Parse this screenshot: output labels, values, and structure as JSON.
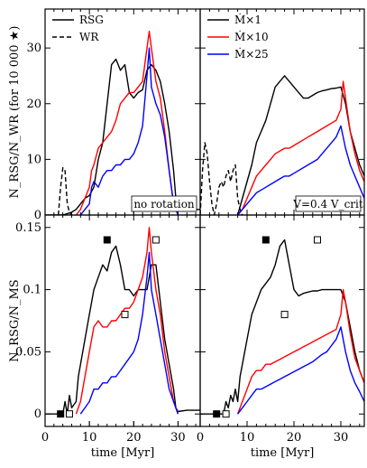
{
  "chart_data": [
    {
      "type": "line",
      "panel": "top-left",
      "xlim": [
        0,
        35
      ],
      "ylim": [
        0,
        37
      ],
      "ylabel": "N_RSG/N_WR (for 10 000 ★)",
      "yticks": [
        "0",
        "10",
        "20",
        "30"
      ],
      "note": "no rotation",
      "legend": {
        "placement": "top-left",
        "entries": [
          {
            "label": "RSG",
            "style": "solid",
            "color": "#000000"
          },
          {
            "label": "WR",
            "style": "dashed",
            "color": "#000000"
          }
        ]
      },
      "series": [
        {
          "color": "#000000",
          "style": "solid",
          "x": [
            0,
            3,
            4,
            6,
            7,
            8,
            9,
            10,
            11,
            12,
            13,
            14,
            15,
            16,
            17,
            18,
            19,
            20,
            21,
            22,
            23,
            24,
            25,
            26,
            27,
            28,
            29,
            29.5,
            30,
            32,
            35
          ],
          "y": [
            0,
            0,
            0,
            0.5,
            1,
            2,
            3,
            3.5,
            5,
            10,
            13,
            20,
            27,
            28,
            26,
            27,
            22,
            21,
            22,
            22.5,
            26,
            27,
            26,
            24,
            20,
            15,
            8,
            3,
            1,
            1,
            1
          ]
        },
        {
          "color": "#000000",
          "style": "dashed",
          "x": [
            3,
            3.5,
            4,
            4.5,
            5,
            5.5,
            6
          ],
          "y": [
            0,
            5,
            8.5,
            8,
            2,
            0.5,
            0
          ]
        },
        {
          "color": "#ff0000",
          "style": "solid",
          "x": [
            7,
            8,
            9,
            10,
            10.5,
            11,
            12,
            13,
            14,
            15,
            16,
            17,
            18,
            19,
            20,
            21,
            22,
            23,
            23.5,
            24,
            25,
            26,
            27,
            28,
            29,
            30
          ],
          "y": [
            0,
            1,
            3,
            5,
            8,
            9,
            12,
            13,
            14,
            15,
            17,
            20,
            21,
            22,
            22,
            23,
            24,
            30,
            33,
            30,
            24,
            21,
            15,
            8,
            2,
            0
          ]
        },
        {
          "color": "#0000ff",
          "style": "solid",
          "x": [
            8,
            9,
            10,
            10.5,
            11,
            12,
            13,
            14,
            15,
            16,
            17,
            18,
            19,
            20,
            21,
            22,
            23,
            23.5,
            24,
            25,
            26,
            27,
            28,
            29,
            30
          ],
          "y": [
            0,
            1,
            2,
            5,
            6,
            5,
            7,
            8,
            8,
            9,
            9,
            10,
            10,
            11,
            13,
            16,
            25,
            30,
            23,
            20,
            18,
            14,
            8,
            2,
            0
          ]
        }
      ]
    },
    {
      "type": "line",
      "panel": "top-right",
      "xlim": [
        0,
        35
      ],
      "ylim": [
        0,
        37
      ],
      "yticks": [
        "0",
        "10",
        "20",
        "30"
      ],
      "note": "V=0.4 V_crit",
      "legend": {
        "placement": "top-left",
        "entries": [
          {
            "label": "Ṁ×1",
            "style": "solid",
            "color": "#000000"
          },
          {
            "label": "Ṁ×10",
            "style": "solid",
            "color": "#ff0000"
          },
          {
            "label": "Ṁ×25",
            "style": "solid",
            "color": "#0000ff"
          }
        ]
      },
      "series": [
        {
          "color": "#000000",
          "style": "dashed",
          "x": [
            0,
            0.5,
            1,
            1.5,
            2,
            2.5,
            3,
            3.5,
            4,
            4.5,
            5,
            5.5,
            6,
            6.5,
            7,
            7.5,
            8,
            8.5,
            9
          ],
          "y": [
            0,
            8,
            13,
            11,
            6,
            2,
            0,
            2,
            5,
            6,
            5,
            7,
            8,
            6,
            8,
            9,
            3,
            1,
            0
          ]
        },
        {
          "color": "#000000",
          "style": "solid",
          "x": [
            8,
            9,
            10,
            11,
            12,
            13,
            14,
            15,
            16,
            17,
            18,
            19,
            20,
            21,
            22,
            23,
            24,
            25,
            26,
            27,
            28,
            29,
            30,
            31,
            32,
            33,
            34,
            35
          ],
          "y": [
            0,
            3,
            6,
            9,
            13,
            15,
            17,
            20,
            23,
            24,
            25,
            24,
            23,
            22,
            21,
            21,
            21.5,
            22,
            22.3,
            22.5,
            22.7,
            22.8,
            23,
            20,
            15,
            12,
            9,
            7
          ]
        },
        {
          "color": "#ff0000",
          "style": "solid",
          "x": [
            8,
            9,
            10,
            11,
            12,
            13,
            14,
            15,
            16,
            17,
            18,
            19,
            20,
            21,
            22,
            23,
            24,
            25,
            26,
            27,
            28,
            29,
            30,
            30.5,
            31,
            32,
            33,
            34,
            35
          ],
          "y": [
            0,
            1,
            3,
            5,
            7,
            8,
            9,
            10,
            11,
            11.5,
            12,
            12,
            12.5,
            13,
            13.5,
            14,
            14.5,
            15,
            15.5,
            16,
            16.5,
            17,
            19,
            24,
            21,
            15,
            11,
            8,
            6
          ]
        },
        {
          "color": "#0000ff",
          "style": "solid",
          "x": [
            8,
            9,
            10,
            11,
            12,
            13,
            14,
            15,
            16,
            17,
            18,
            19,
            20,
            21,
            22,
            23,
            24,
            25,
            26,
            27,
            28,
            29,
            30,
            31,
            32,
            33,
            34,
            35
          ],
          "y": [
            0,
            1,
            2,
            3,
            4,
            4.5,
            5,
            5.5,
            6,
            6.5,
            7,
            7,
            7.5,
            8,
            8.5,
            9,
            9.5,
            10,
            11,
            12,
            13,
            14,
            16,
            12,
            9,
            7,
            5,
            3
          ]
        }
      ]
    },
    {
      "type": "line",
      "panel": "bottom-left",
      "xlim": [
        0,
        35
      ],
      "ylim": [
        -0.01,
        0.16
      ],
      "ylabel": "N_RSG/N_MS",
      "xlabel": "time [Myr]",
      "xticks": [
        "0",
        "10",
        "20",
        "30"
      ],
      "yticks": [
        "0",
        "0.05",
        "0.1",
        "0.15"
      ],
      "markers": [
        {
          "x": 14,
          "y": 0.14,
          "filled": true
        },
        {
          "x": 25,
          "y": 0.14,
          "filled": false
        },
        {
          "x": 18,
          "y": 0.08,
          "filled": false
        },
        {
          "x": 3.5,
          "y": 0,
          "filled": true
        },
        {
          "x": 5.5,
          "y": 0,
          "filled": false
        }
      ],
      "series": [
        {
          "color": "#000000",
          "style": "solid",
          "x": [
            0,
            4,
            4.5,
            5,
            5.5,
            6,
            7,
            7.5,
            8,
            9,
            10,
            11,
            12,
            13,
            14,
            15,
            16,
            17,
            18,
            19,
            20,
            21,
            22,
            23,
            24,
            25,
            26,
            27,
            28,
            29,
            29.5,
            30,
            32,
            35
          ],
          "y": [
            0,
            0,
            0.01,
            0,
            0.015,
            0.005,
            0.01,
            0.03,
            0.04,
            0.06,
            0.08,
            0.1,
            0.11,
            0.12,
            0.115,
            0.13,
            0.135,
            0.12,
            0.1,
            0.1,
            0.095,
            0.1,
            0.1,
            0.1,
            0.12,
            0.12,
            0.09,
            0.06,
            0.04,
            0.02,
            0.005,
            0.002,
            0.003,
            0.003
          ]
        },
        {
          "color": "#ff0000",
          "style": "solid",
          "x": [
            7,
            8,
            9,
            10,
            10.5,
            11,
            12,
            13,
            14,
            15,
            16,
            17,
            18,
            19,
            20,
            21,
            22,
            23,
            23.5,
            24,
            25,
            26,
            27,
            28,
            29,
            30
          ],
          "y": [
            0,
            0.01,
            0.03,
            0.05,
            0.06,
            0.07,
            0.075,
            0.07,
            0.07,
            0.075,
            0.075,
            0.08,
            0.085,
            0.085,
            0.09,
            0.1,
            0.11,
            0.13,
            0.15,
            0.13,
            0.1,
            0.08,
            0.05,
            0.03,
            0.01,
            0
          ]
        },
        {
          "color": "#0000ff",
          "style": "solid",
          "x": [
            8,
            9,
            10,
            10.5,
            11,
            12,
            13,
            14,
            15,
            16,
            17,
            18,
            19,
            20,
            21,
            22,
            23,
            23.5,
            24,
            25,
            26,
            27,
            28,
            29,
            30
          ],
          "y": [
            0,
            0.005,
            0.01,
            0.015,
            0.02,
            0.02,
            0.025,
            0.025,
            0.03,
            0.03,
            0.035,
            0.04,
            0.045,
            0.05,
            0.06,
            0.08,
            0.11,
            0.13,
            0.1,
            0.08,
            0.06,
            0.04,
            0.02,
            0.01,
            0
          ]
        }
      ]
    },
    {
      "type": "line",
      "panel": "bottom-right",
      "xlim": [
        0,
        35
      ],
      "ylim": [
        -0.01,
        0.16
      ],
      "xlabel": "time [Myr]",
      "xticks": [
        "0",
        "10",
        "20",
        "30"
      ],
      "yticks": [
        "0",
        "0.05",
        "0.1",
        "0.15"
      ],
      "markers": [
        {
          "x": 14,
          "y": 0.14,
          "filled": true
        },
        {
          "x": 25,
          "y": 0.14,
          "filled": false
        },
        {
          "x": 18,
          "y": 0.08,
          "filled": false
        },
        {
          "x": 3.5,
          "y": 0,
          "filled": true
        },
        {
          "x": 5.5,
          "y": 0,
          "filled": false
        }
      ],
      "series": [
        {
          "color": "#000000",
          "style": "solid",
          "x": [
            0,
            5,
            5.5,
            6,
            6.5,
            7,
            7.5,
            8,
            8.5,
            9,
            10,
            11,
            12,
            13,
            14,
            15,
            16,
            17,
            18,
            19,
            20,
            21,
            22,
            23,
            24,
            25,
            26,
            27,
            28,
            29,
            30,
            31,
            32,
            33,
            34,
            35
          ],
          "y": [
            0,
            0,
            0.01,
            0.005,
            0.015,
            0.01,
            0.02,
            0.01,
            0.03,
            0.04,
            0.06,
            0.08,
            0.09,
            0.1,
            0.105,
            0.11,
            0.12,
            0.135,
            0.14,
            0.12,
            0.1,
            0.095,
            0.097,
            0.098,
            0.099,
            0.099,
            0.1,
            0.1,
            0.1,
            0.1,
            0.1,
            0.09,
            0.07,
            0.05,
            0.035,
            0.025
          ]
        },
        {
          "color": "#ff0000",
          "style": "solid",
          "x": [
            8,
            9,
            10,
            11,
            12,
            13,
            14,
            15,
            16,
            17,
            18,
            19,
            20,
            21,
            22,
            23,
            24,
            25,
            26,
            27,
            28,
            29,
            30,
            30.5,
            31,
            32,
            33,
            34,
            35
          ],
          "y": [
            0,
            0.01,
            0.02,
            0.03,
            0.035,
            0.035,
            0.04,
            0.04,
            0.042,
            0.044,
            0.046,
            0.048,
            0.05,
            0.052,
            0.054,
            0.056,
            0.058,
            0.06,
            0.062,
            0.064,
            0.066,
            0.068,
            0.08,
            0.1,
            0.09,
            0.065,
            0.045,
            0.035,
            0.025
          ]
        },
        {
          "color": "#0000ff",
          "style": "solid",
          "x": [
            8,
            9,
            10,
            11,
            12,
            13,
            14,
            15,
            16,
            17,
            18,
            19,
            20,
            21,
            22,
            23,
            24,
            25,
            26,
            27,
            28,
            29,
            30,
            31,
            32,
            33,
            34,
            35
          ],
          "y": [
            0,
            0.005,
            0.01,
            0.015,
            0.02,
            0.02,
            0.022,
            0.024,
            0.026,
            0.028,
            0.03,
            0.032,
            0.034,
            0.036,
            0.038,
            0.04,
            0.042,
            0.045,
            0.048,
            0.05,
            0.055,
            0.06,
            0.07,
            0.05,
            0.035,
            0.025,
            0.018,
            0.01
          ]
        }
      ]
    }
  ]
}
